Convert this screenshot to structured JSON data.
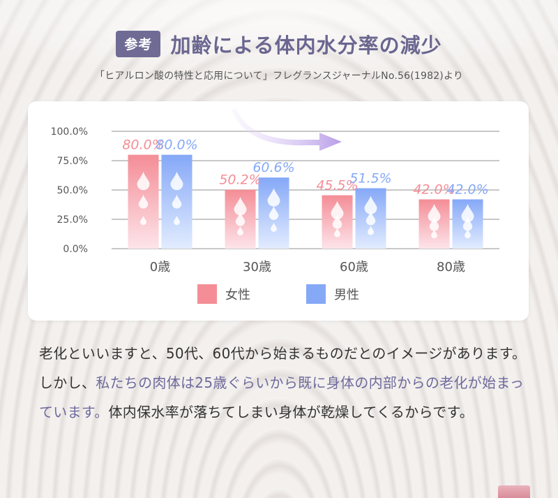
{
  "header": {
    "badge": "参考",
    "title": "加齢による体内水分率の減少",
    "source": "「ヒアルロン酸の特性と応用について」フレグランスジャーナルNo.56(1982)より"
  },
  "colors": {
    "female": "#f48d96",
    "male": "#85a8f7",
    "accent": "#6f6b95",
    "arrow": "#b99ee8"
  },
  "icons": [
    "water-drop-icon",
    "arrow-right-icon"
  ],
  "chart_data": {
    "type": "bar",
    "categories": [
      "0歳",
      "30歳",
      "60歳",
      "80歳"
    ],
    "series": [
      {
        "name": "女性",
        "values": [
          80.0,
          50.2,
          45.5,
          42.0
        ],
        "labels": [
          "80.0%",
          "50.2%",
          "45.5%",
          "42.0%"
        ]
      },
      {
        "name": "男性",
        "values": [
          80.0,
          60.6,
          51.5,
          42.0
        ],
        "labels": [
          "80.0%",
          "60.6%",
          "51.5%",
          "42.0%"
        ]
      }
    ],
    "yticks": [
      "0.0%",
      "25.0%",
      "50.0%",
      "75.0%",
      "100.0%"
    ],
    "ylim": [
      0,
      100
    ],
    "grid": true,
    "legend_position": "bottom-center"
  },
  "body": {
    "part1": "老化といいますと、50代、60代から始まるものだとのイメージがあります。しかし、",
    "highlight": "私たちの肉体は25歳ぐらいから既に身体の内部からの老化が始まっています。",
    "part2": "体内保水率が落ちてしまい身体が乾燥してくるからです。"
  }
}
